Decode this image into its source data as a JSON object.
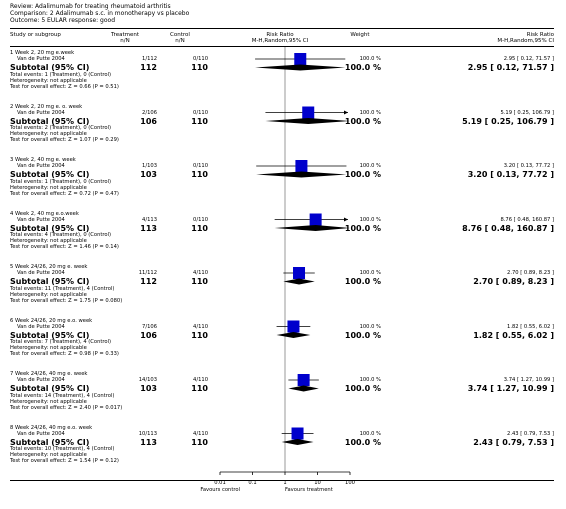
{
  "review": {
    "line1": "Review:  Adalimumab for treating rheumatoid arthritis",
    "line2": "Comparison:  2 Adalimumab s.c. in monotherapy vs placebo",
    "line3": "Outcome:  5 EULAR response: good"
  },
  "columns": {
    "study": "Study or subgroup",
    "treatment": "Treatment",
    "treatment_sub": "n/N",
    "control": "Control",
    "control_sub": "n/N",
    "rr_plot": "Risk Ratio",
    "rr_plot_sub": "M-H,Random,95% CI",
    "weight": "Weight",
    "rr": "Risk Ratio",
    "rr_sub": "M-H,Random,95% CI"
  },
  "axis": {
    "ticks": [
      "0.01",
      "0.1",
      "1",
      "10",
      "100"
    ],
    "favours_left": "Favours control",
    "favours_right": "Favours treatment"
  },
  "chart_data": {
    "type": "forest",
    "scale": "log",
    "xlim": [
      0.01,
      100
    ],
    "ticks": [
      0.01,
      0.1,
      1,
      10,
      100
    ],
    "groups": [
      {
        "title": "1 Week 2, 20 mg e.week",
        "study": {
          "name": "Van de Putte 2004",
          "treatment": "1/112",
          "control": "0/110",
          "weight": "100.0 %",
          "rr_text": "2.95 [ 0.12, 71.57 ]",
          "rr": 2.95,
          "lo": 0.12,
          "hi": 71.57
        },
        "subtotal": {
          "label": "Subtotal (95% CI)",
          "treatment": "112",
          "control": "110",
          "weight": "100.0 %",
          "rr_text": "2.95 [ 0.12, 71.57 ]",
          "rr": 2.95,
          "lo": 0.12,
          "hi": 71.57
        },
        "total_events": "Total events: 1 (Treatment), 0 (Control)",
        "heterogeneity": "Heterogeneity: not applicable",
        "overall": "Test for overall effect: Z = 0.66 (P = 0.51)"
      },
      {
        "title": "2 Week 2, 20 mg e. o. week",
        "study": {
          "name": "Van de Putte 2004",
          "treatment": "2/106",
          "control": "0/110",
          "weight": "100.0 %",
          "rr_text": "5.19 [ 0.25, 106.79 ]",
          "rr": 5.19,
          "lo": 0.25,
          "hi": 106.79
        },
        "subtotal": {
          "label": "Subtotal (95% CI)",
          "treatment": "106",
          "control": "110",
          "weight": "100.0 %",
          "rr_text": "5.19 [ 0.25, 106.79 ]",
          "rr": 5.19,
          "lo": 0.25,
          "hi": 106.79
        },
        "total_events": "Total events: 2 (Treatment), 0 (Control)",
        "heterogeneity": "Heterogeneity: not applicable",
        "overall": "Test for overall effect: Z = 1.07 (P = 0.29)"
      },
      {
        "title": "3 Week 2, 40 mg e. week",
        "study": {
          "name": "Van de Putte 2004",
          "treatment": "1/103",
          "control": "0/110",
          "weight": "100.0 %",
          "rr_text": "3.20 [ 0.13, 77.72 ]",
          "rr": 3.2,
          "lo": 0.13,
          "hi": 77.72
        },
        "subtotal": {
          "label": "Subtotal (95% CI)",
          "treatment": "103",
          "control": "110",
          "weight": "100.0 %",
          "rr_text": "3.20 [ 0.13, 77.72 ]",
          "rr": 3.2,
          "lo": 0.13,
          "hi": 77.72
        },
        "total_events": "Total events: 1 (Treatment), 0 (Control)",
        "heterogeneity": "Heterogeneity: not applicable",
        "overall": "Test for overall effect: Z = 0.72 (P = 0.47)"
      },
      {
        "title": "4 Week 2, 40 mg e.o.week",
        "study": {
          "name": "Van de Putte 2004",
          "treatment": "4/113",
          "control": "0/110",
          "weight": "100.0 %",
          "rr_text": "8.76 [ 0.48, 160.87 ]",
          "rr": 8.76,
          "lo": 0.48,
          "hi": 160.87
        },
        "subtotal": {
          "label": "Subtotal (95% CI)",
          "treatment": "113",
          "control": "110",
          "weight": "100.0 %",
          "rr_text": "8.76 [ 0.48, 160.87 ]",
          "rr": 8.76,
          "lo": 0.48,
          "hi": 160.87
        },
        "total_events": "Total events: 4 (Treatment), 0 (Control)",
        "heterogeneity": "Heterogeneity: not applicable",
        "overall": "Test for overall effect: Z = 1.46 (P = 0.14)"
      },
      {
        "title": "5 Week 24/26, 20 mg e. week",
        "study": {
          "name": "Van de Putte 2004",
          "treatment": "11/112",
          "control": "4/110",
          "weight": "100.0 %",
          "rr_text": "2.70 [ 0.89, 8.23 ]",
          "rr": 2.7,
          "lo": 0.89,
          "hi": 8.23
        },
        "subtotal": {
          "label": "Subtotal (95% CI)",
          "treatment": "112",
          "control": "110",
          "weight": "100.0 %",
          "rr_text": "2.70 [ 0.89, 8.23 ]",
          "rr": 2.7,
          "lo": 0.89,
          "hi": 8.23
        },
        "total_events": "Total events: 11 (Treatment), 4 (Control)",
        "heterogeneity": "Heterogeneity: not applicable",
        "overall": "Test for overall effect: Z = 1.75 (P = 0.080)"
      },
      {
        "title": "6 Week 24/26, 20 mg e.o. week",
        "study": {
          "name": "Van de Putte 2004",
          "treatment": "7/106",
          "control": "4/110",
          "weight": "100.0 %",
          "rr_text": "1.82 [ 0.55, 6.02 ]",
          "rr": 1.82,
          "lo": 0.55,
          "hi": 6.02
        },
        "subtotal": {
          "label": "Subtotal (95% CI)",
          "treatment": "106",
          "control": "110",
          "weight": "100.0 %",
          "rr_text": "1.82 [ 0.55, 6.02 ]",
          "rr": 1.82,
          "lo": 0.55,
          "hi": 6.02
        },
        "total_events": "Total events: 7 (Treatment), 4 (Control)",
        "heterogeneity": "Heterogeneity: not applicable",
        "overall": "Test for overall effect: Z = 0.98 (P = 0.33)"
      },
      {
        "title": "7 Week 24/26, 40 mg e. week",
        "study": {
          "name": "Van de Putte 2004",
          "treatment": "14/103",
          "control": "4/110",
          "weight": "100.0 %",
          "rr_text": "3.74 [ 1.27, 10.99 ]",
          "rr": 3.74,
          "lo": 1.27,
          "hi": 10.99
        },
        "subtotal": {
          "label": "Subtotal (95% CI)",
          "treatment": "103",
          "control": "110",
          "weight": "100.0 %",
          "rr_text": "3.74 [ 1.27, 10.99 ]",
          "rr": 3.74,
          "lo": 1.27,
          "hi": 10.99
        },
        "total_events": "Total events: 14 (Treatment), 4 (Control)",
        "heterogeneity": "Heterogeneity: not applicable",
        "overall": "Test for overall effect: Z = 2.40 (P = 0.017)"
      },
      {
        "title": "8 Week 24/26, 40 mg e.o. week",
        "study": {
          "name": "Van de Putte 2004",
          "treatment": "10/113",
          "control": "4/110",
          "weight": "100.0 %",
          "rr_text": "2.43 [ 0.79, 7.53 ]",
          "rr": 2.43,
          "lo": 0.79,
          "hi": 7.53
        },
        "subtotal": {
          "label": "Subtotal (95% CI)",
          "treatment": "113",
          "control": "110",
          "weight": "100.0 %",
          "rr_text": "2.43 [ 0.79, 7.53 ]",
          "rr": 2.43,
          "lo": 0.79,
          "hi": 7.53
        },
        "total_events": "Total events: 10 (Treatment), 4 (Control)",
        "heterogeneity": "Heterogeneity: not applicable",
        "overall": "Test for overall effect: Z = 1.54 (P = 0.12)"
      }
    ],
    "colors": {
      "square": "#0000cc",
      "diamond": "#000000",
      "line": "#000000"
    }
  }
}
